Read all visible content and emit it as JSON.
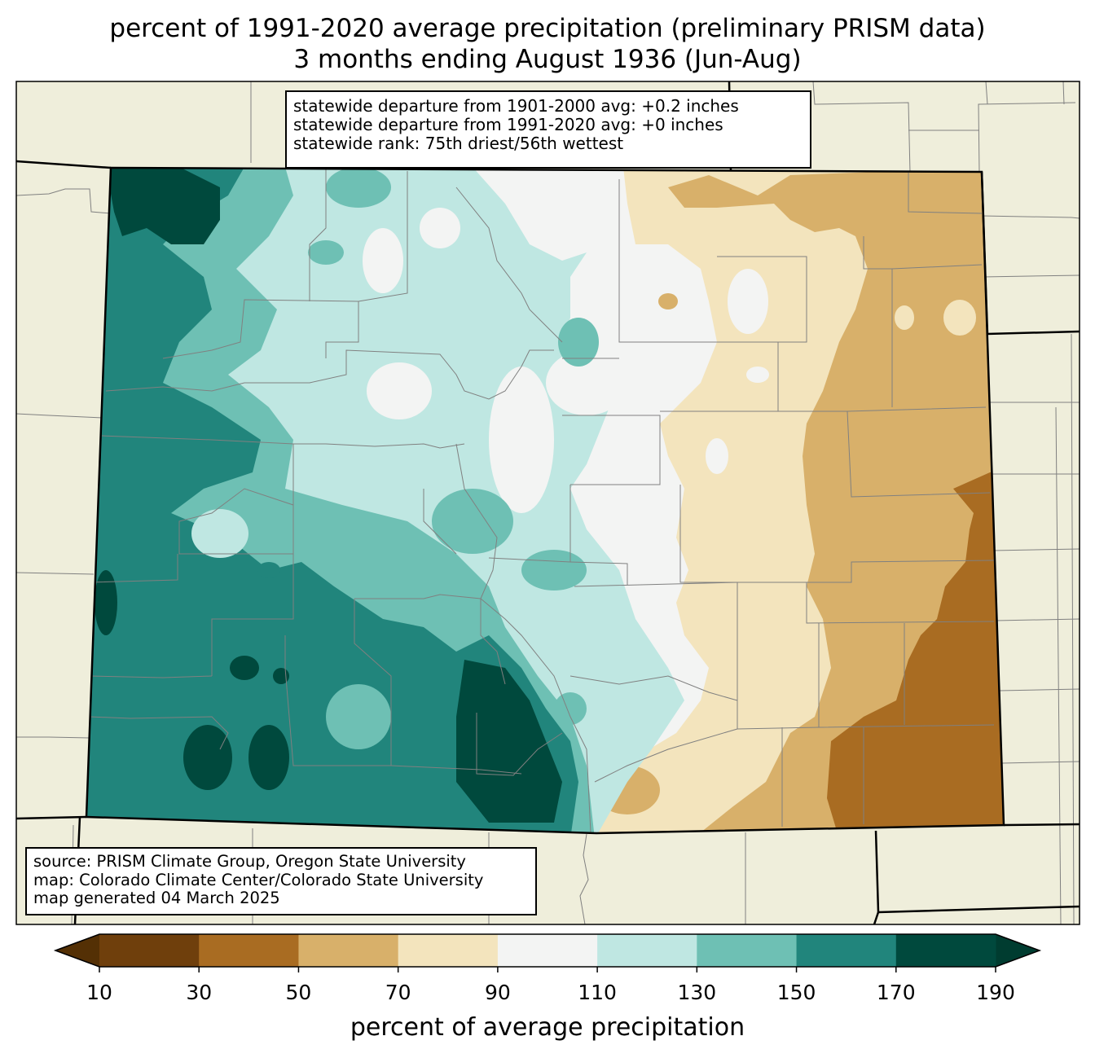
{
  "title": {
    "line1": "percent of 1991-2020 average precipitation (preliminary PRISM data)",
    "line2": "3 months ending August 1936 (Jun-Aug)"
  },
  "stats": {
    "line1": "statewide departure from 1901-2000 avg: +0.2 inches",
    "line2": "statewide departure from 1991-2020 avg: +0 inches",
    "line3": "statewide rank: 75th driest/56th wettest"
  },
  "source": {
    "line1": "source: PRISM Climate Group, Oregon State University",
    "line2": "map: Colorado Climate Center/Colorado State University",
    "line3": "map generated 04 March 2025"
  },
  "legend": {
    "label": "percent of average precipitation",
    "ticks": [
      "10",
      "30",
      "50",
      "70",
      "90",
      "110",
      "130",
      "150",
      "170",
      "190"
    ],
    "colors": [
      "#6f3f0c",
      "#a96c22",
      "#d8b06a",
      "#f3e4bd",
      "#f3f4f3",
      "#bfe7e2",
      "#6ec0b4",
      "#21857c",
      "#00493d"
    ],
    "under_color": "#543005",
    "over_color": "#003c30"
  },
  "map": {
    "background_color": "#efeedb",
    "state_border_color": "#000000",
    "county_line_color": "#808080"
  }
}
